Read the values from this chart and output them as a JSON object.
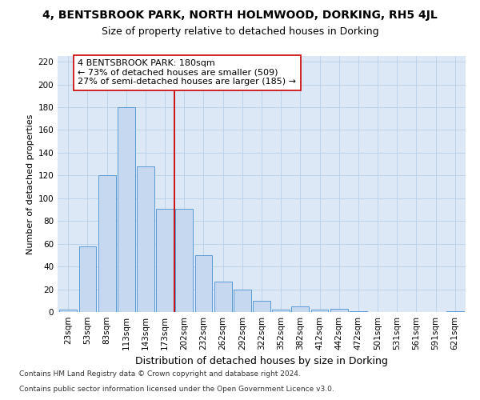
{
  "title1": "4, BENTSBROOK PARK, NORTH HOLMWOOD, DORKING, RH5 4JL",
  "title2": "Size of property relative to detached houses in Dorking",
  "xlabel": "Distribution of detached houses by size in Dorking",
  "ylabel": "Number of detached properties",
  "categories": [
    "23sqm",
    "53sqm",
    "83sqm",
    "113sqm",
    "143sqm",
    "173sqm",
    "202sqm",
    "232sqm",
    "262sqm",
    "292sqm",
    "322sqm",
    "352sqm",
    "382sqm",
    "412sqm",
    "442sqm",
    "472sqm",
    "501sqm",
    "531sqm",
    "561sqm",
    "591sqm",
    "621sqm"
  ],
  "values": [
    2,
    58,
    120,
    180,
    128,
    91,
    91,
    50,
    27,
    20,
    10,
    2,
    5,
    2,
    3,
    1,
    0,
    0,
    0,
    0,
    1
  ],
  "bar_color": "#c5d8ef",
  "bar_edge_color": "#5b9bd5",
  "vline_x": 5.5,
  "vline_color": "#cc0000",
  "annotation_text": "4 BENTSBROOK PARK: 180sqm\n← 73% of detached houses are smaller (509)\n27% of semi-detached houses are larger (185) →",
  "annotation_box_facecolor": "#ffffff",
  "annotation_box_edgecolor": "#cc0000",
  "ylim": [
    0,
    225
  ],
  "yticks": [
    0,
    20,
    40,
    60,
    80,
    100,
    120,
    140,
    160,
    180,
    200,
    220
  ],
  "footnote1": "Contains HM Land Registry data © Crown copyright and database right 2024.",
  "footnote2": "Contains public sector information licensed under the Open Government Licence v3.0.",
  "plot_bg_color": "#dce8f5",
  "grid_color": "#b8cfe8",
  "title1_fontsize": 10,
  "title2_fontsize": 9,
  "xlabel_fontsize": 9,
  "ylabel_fontsize": 8,
  "tick_fontsize": 7.5,
  "annotation_fontsize": 8,
  "footnote_fontsize": 6.5
}
